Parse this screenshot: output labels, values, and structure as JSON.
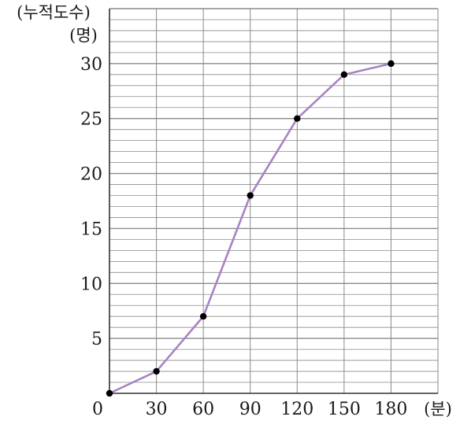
{
  "chart_data": {
    "type": "line",
    "title": "",
    "ylabel_line1": "(누적도수)",
    "ylabel_line2": "(명)",
    "xlabel": "(분)",
    "origin_label": "0",
    "xlim": [
      0,
      210
    ],
    "ylim": [
      0,
      35
    ],
    "x_ticks": [
      "30",
      "60",
      "90",
      "120",
      "150",
      "180"
    ],
    "y_ticks": [
      "5",
      "10",
      "15",
      "20",
      "25",
      "30"
    ],
    "grid": true,
    "x": [
      0,
      30,
      60,
      90,
      120,
      150,
      180
    ],
    "y": [
      0,
      2,
      7,
      18,
      25,
      29,
      30
    ],
    "line_color": "#a883c4",
    "point_color": "#000000",
    "grid_color": "#8a8a8a"
  }
}
